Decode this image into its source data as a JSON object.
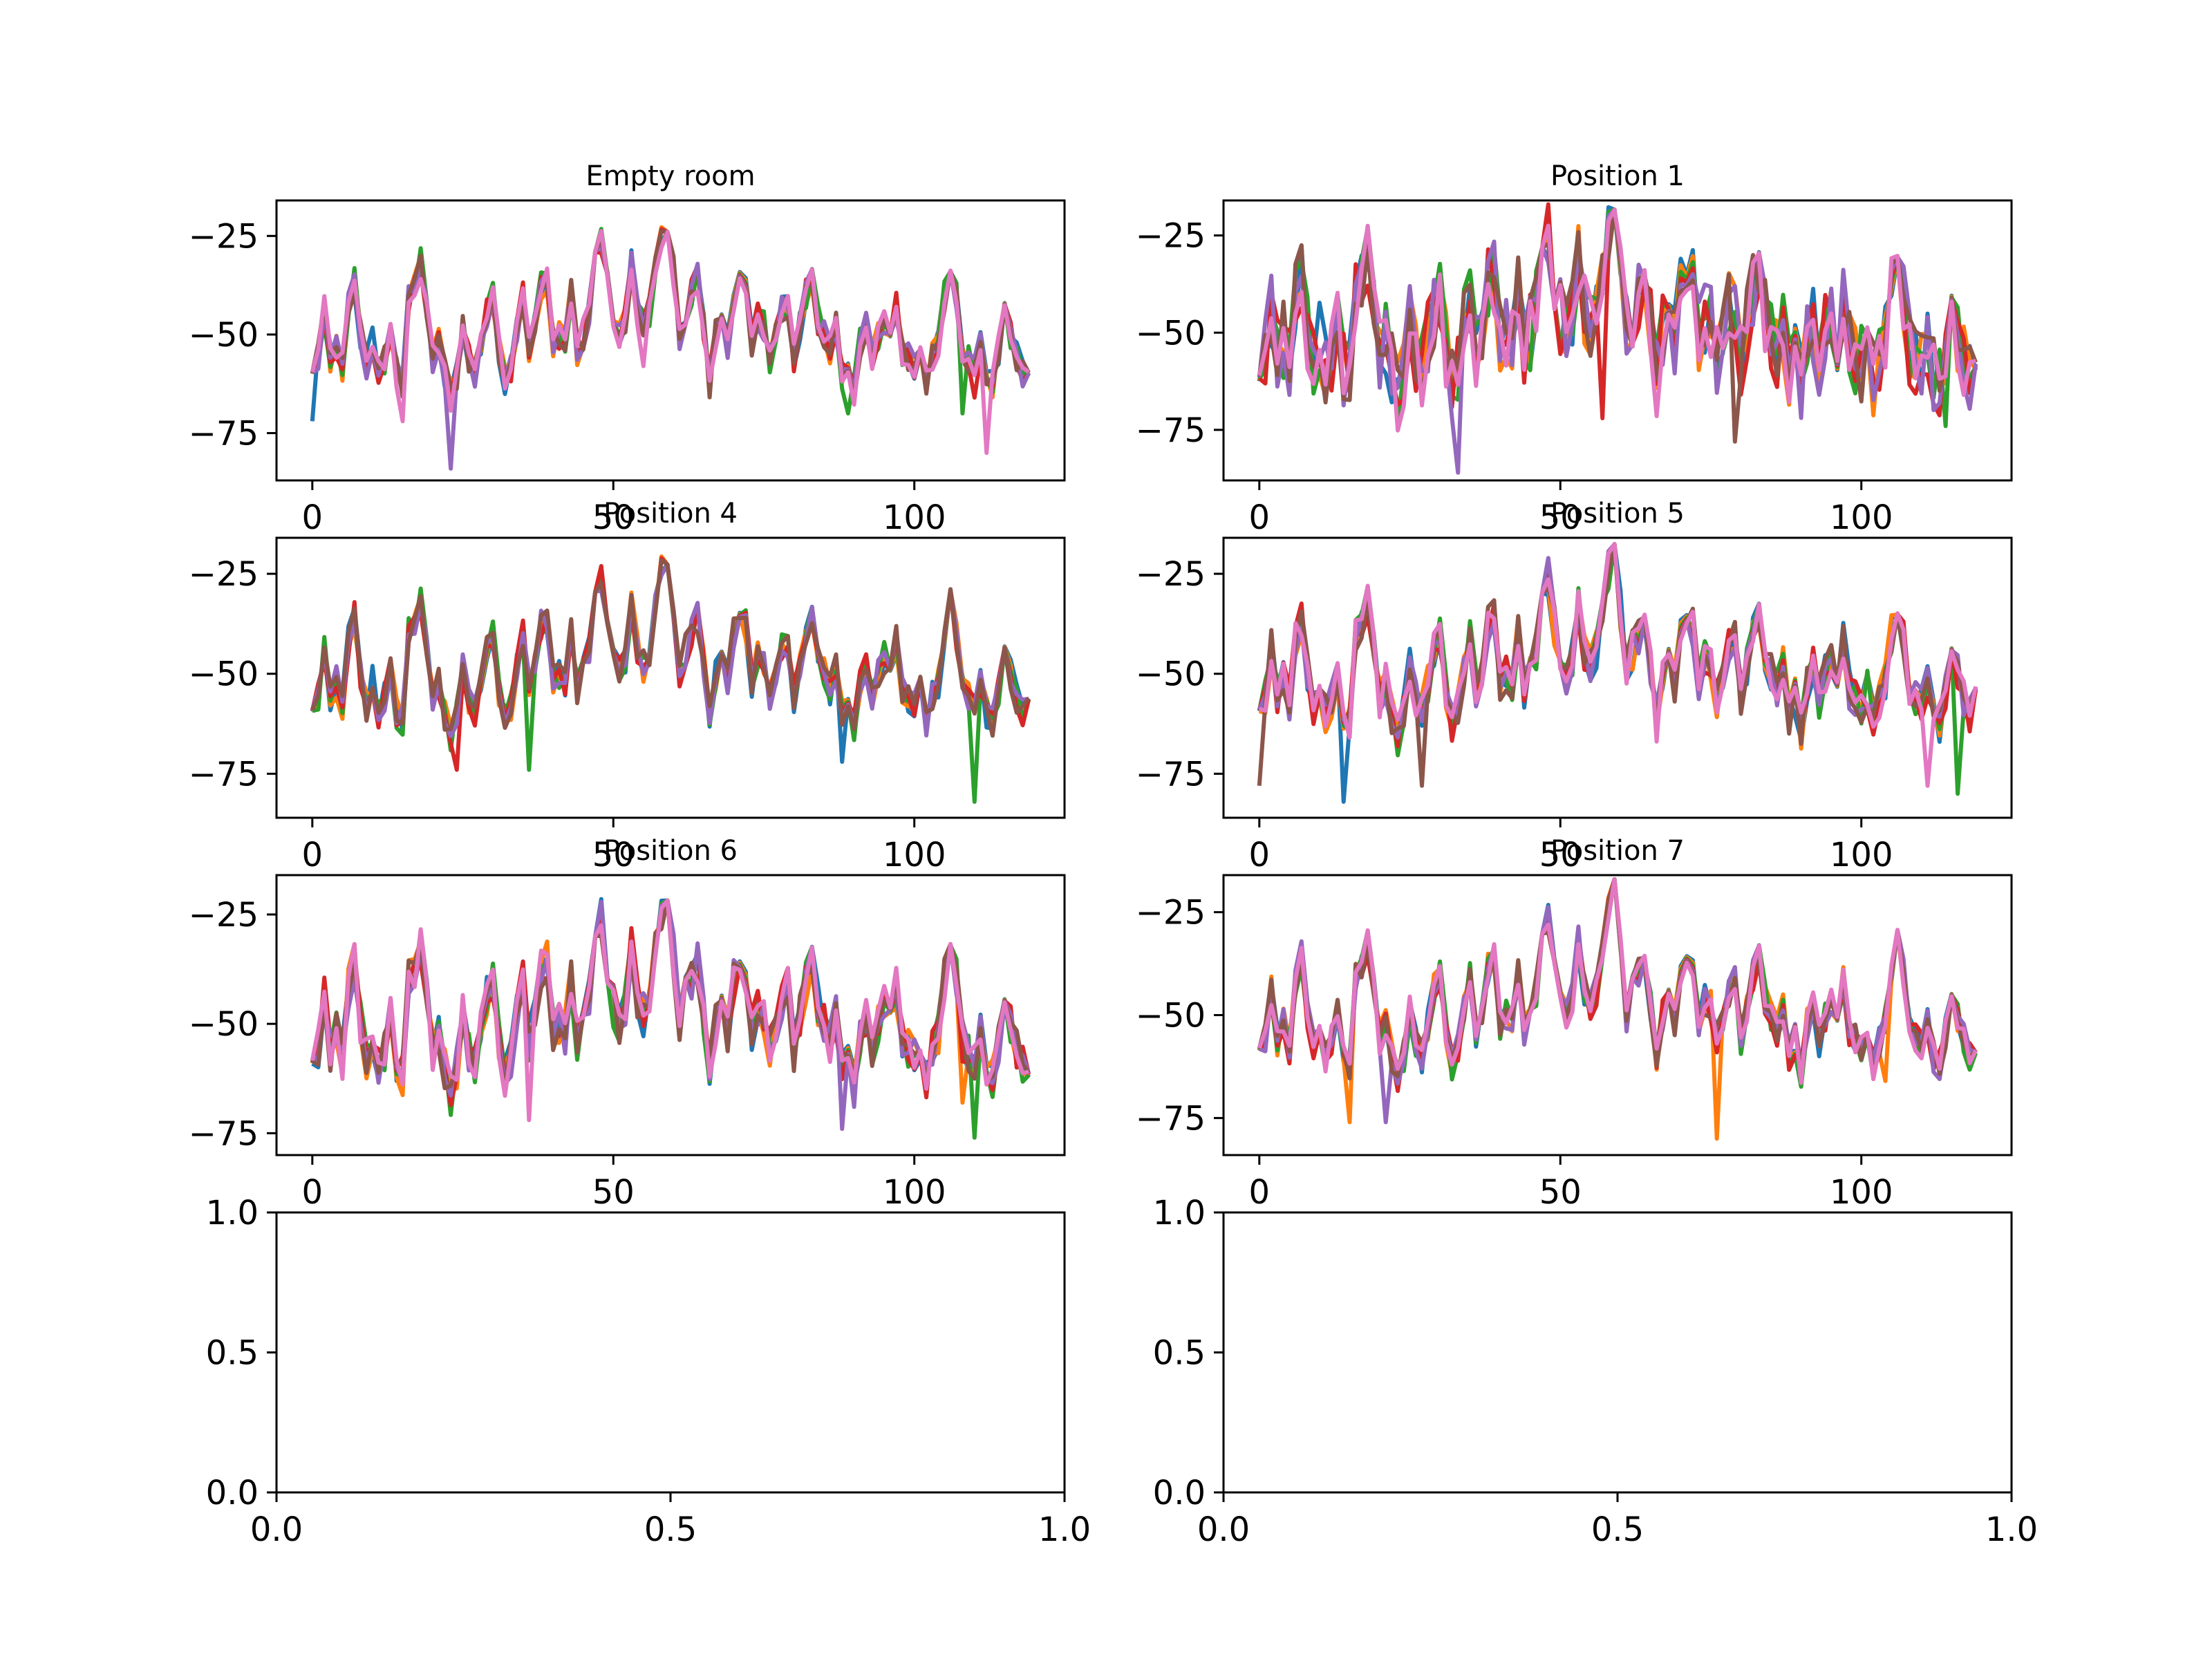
{
  "palette": [
    "#1f77b4",
    "#ff7f0e",
    "#2ca02c",
    "#d62728",
    "#9467bd",
    "#8c564b",
    "#e377c2"
  ],
  "chart_data": [
    {
      "type": "line",
      "title": "Empty room",
      "xlim": [
        -5.95,
        124.95
      ],
      "ylim": [
        -87,
        -16
      ],
      "xticks": [
        0,
        50,
        100
      ],
      "yticks": [
        -25,
        -50,
        -75
      ],
      "x": {
        "start": 0,
        "step": 1,
        "count": 120
      },
      "base_profile": [
        [
          0,
          -58
        ],
        [
          1,
          -56
        ],
        [
          2,
          -44
        ],
        [
          3,
          -56
        ],
        [
          4,
          -52
        ],
        [
          5,
          -58
        ],
        [
          6,
          -42
        ],
        [
          7,
          -36
        ],
        [
          8,
          -50
        ],
        [
          9,
          -58
        ],
        [
          10,
          -52
        ],
        [
          11,
          -60
        ],
        [
          12,
          -56
        ],
        [
          13,
          -48
        ],
        [
          14,
          -60
        ],
        [
          15,
          -62
        ],
        [
          16,
          -40
        ],
        [
          17,
          -38
        ],
        [
          18,
          -32
        ],
        [
          19,
          -44
        ],
        [
          20,
          -56
        ],
        [
          21,
          -52
        ],
        [
          22,
          -60
        ],
        [
          23,
          -66
        ],
        [
          24,
          -60
        ],
        [
          25,
          -48
        ],
        [
          26,
          -56
        ],
        [
          27,
          -60
        ],
        [
          28,
          -52
        ],
        [
          29,
          -44
        ],
        [
          30,
          -40
        ],
        [
          31,
          -54
        ],
        [
          32,
          -62
        ],
        [
          33,
          -58
        ],
        [
          34,
          -48
        ],
        [
          35,
          -40
        ],
        [
          36,
          -54
        ],
        [
          37,
          -48
        ],
        [
          38,
          -38
        ],
        [
          39,
          -36
        ],
        [
          40,
          -52
        ],
        [
          41,
          -50
        ],
        [
          42,
          -52
        ],
        [
          43,
          -40
        ],
        [
          44,
          -54
        ],
        [
          45,
          -50
        ],
        [
          46,
          -44
        ],
        [
          47,
          -30
        ],
        [
          48,
          -26
        ],
        [
          49,
          -38
        ],
        [
          50,
          -46
        ],
        [
          51,
          -50
        ],
        [
          52,
          -46
        ],
        [
          53,
          -32
        ],
        [
          54,
          -44
        ],
        [
          55,
          -48
        ],
        [
          56,
          -44
        ],
        [
          57,
          -34
        ],
        [
          58,
          -24
        ],
        [
          59,
          -20
        ],
        [
          60,
          -34
        ],
        [
          61,
          -50
        ],
        [
          62,
          -44
        ],
        [
          63,
          -40
        ],
        [
          64,
          -36
        ],
        [
          65,
          -48
        ],
        [
          66,
          -62
        ],
        [
          67,
          -50
        ],
        [
          68,
          -46
        ],
        [
          69,
          -52
        ],
        [
          70,
          -40
        ],
        [
          71,
          -34
        ],
        [
          72,
          -38
        ],
        [
          73,
          -52
        ],
        [
          74,
          -46
        ],
        [
          75,
          -48
        ],
        [
          76,
          -56
        ],
        [
          77,
          -50
        ],
        [
          78,
          -44
        ],
        [
          79,
          -42
        ],
        [
          80,
          -56
        ],
        [
          81,
          -48
        ],
        [
          82,
          -40
        ],
        [
          83,
          -36
        ],
        [
          84,
          -46
        ],
        [
          85,
          -50
        ],
        [
          86,
          -54
        ],
        [
          87,
          -48
        ],
        [
          88,
          -60
        ],
        [
          89,
          -56
        ],
        [
          90,
          -64
        ],
        [
          91,
          -52
        ],
        [
          92,
          -48
        ],
        [
          93,
          -56
        ],
        [
          94,
          -50
        ],
        [
          95,
          -46
        ],
        [
          96,
          -50
        ],
        [
          97,
          -42
        ],
        [
          98,
          -54
        ],
        [
          99,
          -56
        ],
        [
          100,
          -58
        ],
        [
          101,
          -54
        ],
        [
          102,
          -62
        ],
        [
          103,
          -56
        ],
        [
          104,
          -52
        ],
        [
          105,
          -40
        ],
        [
          106,
          -32
        ],
        [
          107,
          -40
        ],
        [
          108,
          -54
        ],
        [
          109,
          -56
        ],
        [
          110,
          -58
        ],
        [
          111,
          -52
        ],
        [
          112,
          -60
        ],
        [
          113,
          -62
        ],
        [
          114,
          -54
        ],
        [
          115,
          -44
        ],
        [
          116,
          -50
        ],
        [
          117,
          -56
        ],
        [
          118,
          -60
        ],
        [
          119,
          -58
        ]
      ],
      "series_count": 7,
      "spread": 4,
      "dips": [
        [
          0,
          -72,
          0
        ],
        [
          15,
          -72,
          6
        ],
        [
          23,
          -84,
          4
        ],
        [
          55,
          -58,
          6
        ],
        [
          89,
          -70,
          2
        ],
        [
          108,
          -70,
          2
        ],
        [
          112,
          -80,
          6
        ],
        [
          110,
          -66,
          3
        ]
      ]
    },
    {
      "type": "line",
      "title": "Position 1",
      "xlim": [
        -5.95,
        124.95
      ],
      "ylim": [
        -88,
        -16
      ],
      "xticks": [
        0,
        50,
        100
      ],
      "yticks": [
        -25,
        -50,
        -75
      ],
      "x": {
        "start": 0,
        "step": 1,
        "count": 120
      },
      "base_profile": "shared",
      "series_count": 7,
      "spread": 10,
      "dips": [
        [
          33,
          -86,
          4
        ],
        [
          79,
          -78,
          5
        ],
        [
          57,
          -72,
          3
        ],
        [
          114,
          -74,
          2
        ]
      ]
    },
    {
      "type": "line",
      "title": "Position 4",
      "xlim": [
        -5.95,
        124.95
      ],
      "ylim": [
        -86,
        -16
      ],
      "xticks": [
        0,
        50,
        100
      ],
      "yticks": [
        -25,
        -50,
        -75
      ],
      "x": {
        "start": 0,
        "step": 1,
        "count": 120
      },
      "base_profile": "shared",
      "series_count": 6,
      "spread": 4,
      "dips": [
        [
          36,
          -74,
          2
        ],
        [
          88,
          -72,
          0
        ],
        [
          110,
          -82,
          2
        ],
        [
          24,
          -74,
          3
        ]
      ]
    },
    {
      "type": "line",
      "title": "Position 5",
      "xlim": [
        -5.95,
        124.95
      ],
      "ylim": [
        -86,
        -16
      ],
      "xticks": [
        0,
        50,
        100
      ],
      "yticks": [
        -25,
        -50,
        -75
      ],
      "x": {
        "start": 0,
        "step": 1,
        "count": 120
      },
      "base_profile": "shared",
      "series_count": 7,
      "spread": 5,
      "dips": [
        [
          14,
          -82,
          0
        ],
        [
          27,
          -78,
          5
        ],
        [
          111,
          -78,
          6
        ],
        [
          116,
          -80,
          2
        ],
        [
          0,
          -78,
          5
        ]
      ]
    },
    {
      "type": "line",
      "title": "Position 6",
      "xlim": [
        -5.95,
        124.95
      ],
      "ylim": [
        -80,
        -16
      ],
      "xticks": [
        0,
        50,
        100
      ],
      "yticks": [
        -25,
        -50,
        -75
      ],
      "x": {
        "start": 0,
        "step": 1,
        "count": 120
      },
      "base_profile": "shared",
      "series_count": 7,
      "spread": 5,
      "dips": [
        [
          88,
          -74,
          4
        ],
        [
          110,
          -76,
          2
        ],
        [
          108,
          -68,
          1
        ],
        [
          36,
          -72,
          6
        ]
      ]
    },
    {
      "type": "line",
      "title": "Position 7",
      "xlim": [
        -5.95,
        124.95
      ],
      "ylim": [
        -84,
        -16
      ],
      "xticks": [
        0,
        50,
        100
      ],
      "yticks": [
        -25,
        -50,
        -75
      ],
      "x": {
        "start": 0,
        "step": 1,
        "count": 120
      },
      "base_profile": "shared",
      "series_count": 7,
      "spread": 4,
      "dips": [
        [
          76,
          -80,
          1
        ],
        [
          15,
          -76,
          1
        ],
        [
          21,
          -76,
          4
        ],
        [
          104,
          -66,
          1
        ]
      ]
    },
    {
      "type": "line",
      "title": "",
      "xlim": [
        0,
        1
      ],
      "ylim": [
        0,
        1
      ],
      "xticks": [
        "0.0",
        "0.5",
        "1.0"
      ],
      "yticks": [
        "0.0",
        "0.5",
        "1.0"
      ],
      "series_count": 0
    },
    {
      "type": "line",
      "title": "",
      "xlim": [
        0,
        1
      ],
      "ylim": [
        0,
        1
      ],
      "xticks": [
        "0.0",
        "0.5",
        "1.0"
      ],
      "yticks": [
        "0.0",
        "0.5",
        "1.0"
      ],
      "series_count": 0
    }
  ]
}
